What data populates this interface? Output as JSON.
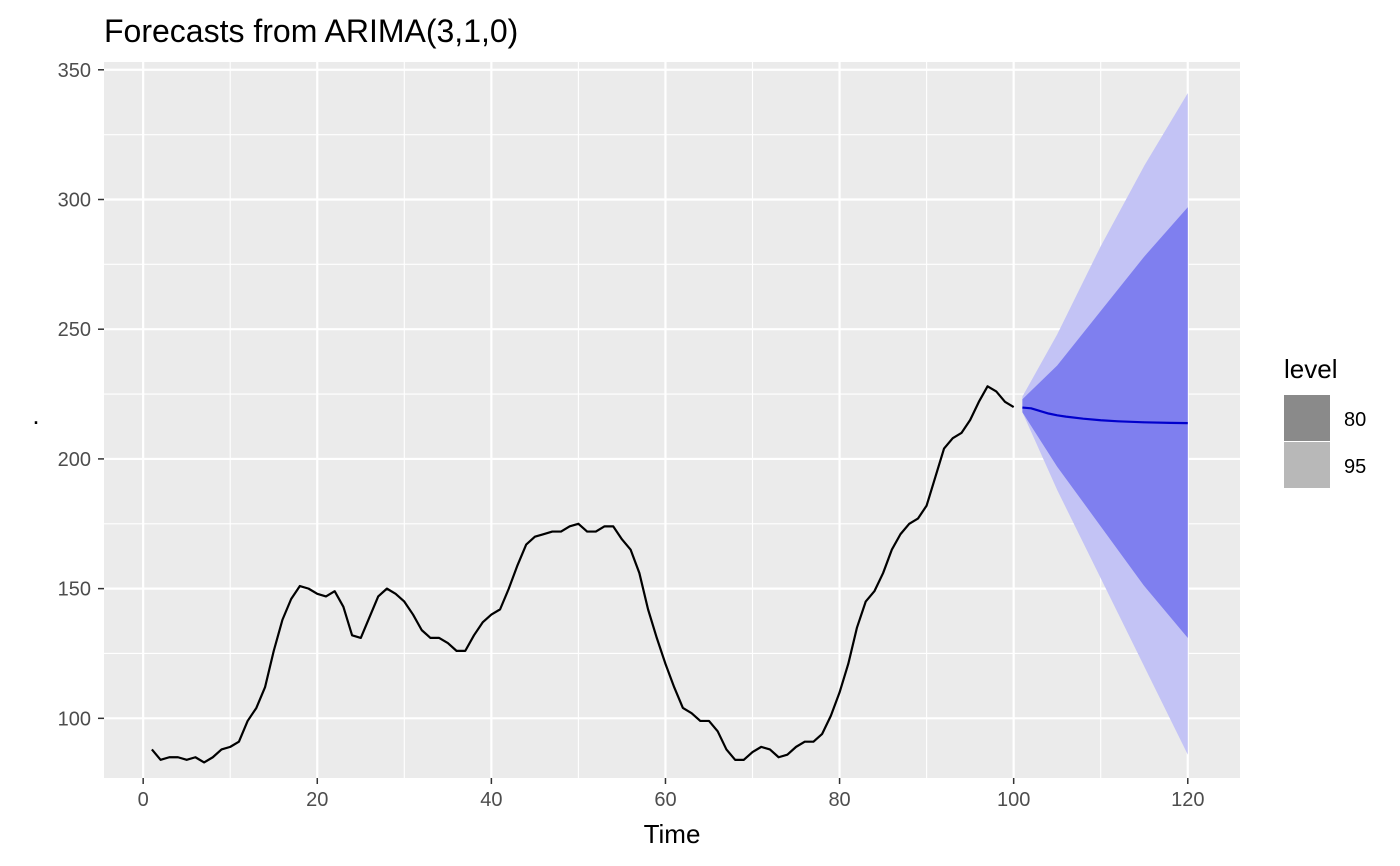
{
  "chart_data": {
    "type": "line",
    "title": "Forecasts from ARIMA(3,1,0)",
    "xlabel": "Time",
    "ylabel": ".",
    "xlim": [
      -4.5,
      126
    ],
    "ylim": [
      77,
      353
    ],
    "x_ticks": [
      0,
      20,
      40,
      60,
      80,
      100,
      120
    ],
    "y_ticks": [
      100,
      150,
      200,
      250,
      300,
      350
    ],
    "grid": true,
    "colors": {
      "panel": "#ebebeb",
      "grid": "#ffffff",
      "observed": "#000000",
      "forecast": "#0000cc",
      "band_80": "#7f7fef",
      "band_95": "#c3c3f5",
      "legend_80": "#8a8a8a",
      "legend_95": "#b8b8b8"
    },
    "series": [
      {
        "name": "observed",
        "x_start": 1,
        "values": [
          88,
          84,
          85,
          85,
          84,
          85,
          83,
          85,
          88,
          89,
          91,
          99,
          104,
          112,
          126,
          138,
          146,
          151,
          150,
          148,
          147,
          149,
          143,
          132,
          131,
          139,
          147,
          150,
          148,
          145,
          140,
          134,
          131,
          131,
          129,
          126,
          126,
          132,
          137,
          140,
          142,
          150,
          159,
          167,
          170,
          171,
          172,
          172,
          174,
          175,
          172,
          172,
          174,
          174,
          169,
          165,
          156,
          142,
          131,
          121,
          112,
          104,
          102,
          99,
          99,
          95,
          88,
          84,
          84,
          87,
          89,
          88,
          85,
          86,
          89,
          91,
          91,
          94,
          101,
          110,
          121,
          135,
          145,
          149,
          156,
          165,
          171,
          175,
          177,
          182,
          193,
          204,
          208,
          210,
          215,
          222,
          228,
          226,
          222,
          220
        ]
      },
      {
        "name": "forecast",
        "x": [
          101,
          102,
          103,
          104,
          105,
          106,
          108,
          110,
          112,
          115,
          118,
          120
        ],
        "values": [
          219.8,
          219.5,
          218.5,
          217.5,
          216.8,
          216.3,
          215.5,
          214.9,
          214.5,
          214.1,
          213.9,
          213.8
        ]
      }
    ],
    "bands": [
      {
        "level": "95",
        "x": [
          101,
          105,
          110,
          115,
          120
        ],
        "lower": [
          218,
          188,
          154,
          120,
          86
        ],
        "upper": [
          224,
          248,
          282,
          313,
          341
        ]
      },
      {
        "level": "80",
        "x": [
          101,
          105,
          110,
          115,
          120
        ],
        "lower": [
          218,
          197,
          174,
          151,
          131
        ],
        "upper": [
          223,
          236,
          257,
          278,
          297
        ]
      }
    ],
    "legend": {
      "title": "level",
      "position": "right",
      "entries": [
        "80",
        "95"
      ]
    }
  }
}
